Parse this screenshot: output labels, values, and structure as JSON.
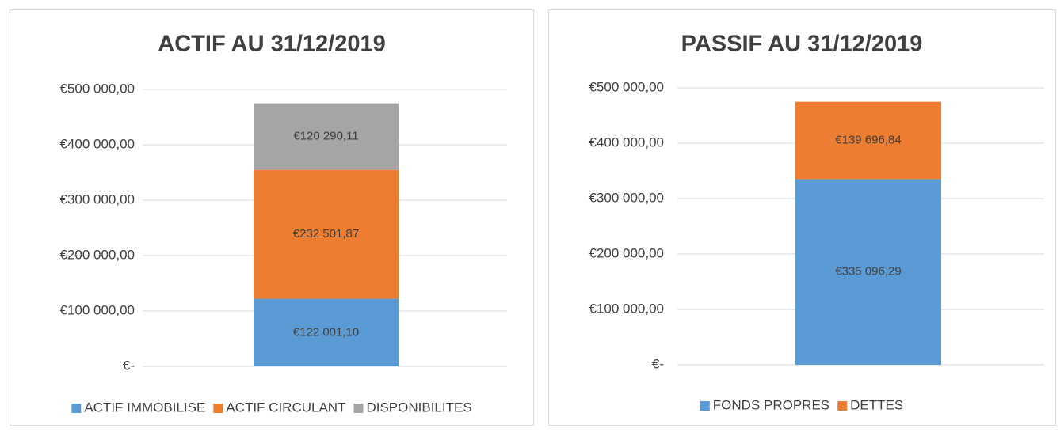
{
  "chart_data": [
    {
      "type": "stacked-bar",
      "title": "ACTIF AU 31/12/2019",
      "categories": [
        null
      ],
      "series": [
        {
          "name": "ACTIF IMMOBILISE",
          "color": "#5b9bd5",
          "values": [
            122001.1
          ],
          "value_labels": [
            "€122 001,10"
          ]
        },
        {
          "name": "ACTIF CIRCULANT",
          "color": "#ed7d31",
          "values": [
            232501.87
          ],
          "value_labels": [
            "€232 501,87"
          ]
        },
        {
          "name": "DISPONIBILITES",
          "color": "#a5a5a5",
          "values": [
            120290.11
          ],
          "value_labels": [
            "€120 290,11"
          ]
        }
      ],
      "ylim": [
        0,
        500000
      ],
      "yticks": [
        {
          "value": 0,
          "label": "€-"
        },
        {
          "value": 100000,
          "label": "€100 000,00"
        },
        {
          "value": 200000,
          "label": "€200 000,00"
        },
        {
          "value": 300000,
          "label": "€300 000,00"
        },
        {
          "value": 400000,
          "label": "€400 000,00"
        },
        {
          "value": 500000,
          "label": "€500 000,00"
        }
      ],
      "grid": true,
      "legend": "bottom"
    },
    {
      "type": "stacked-bar",
      "title": "PASSIF AU 31/12/2019",
      "categories": [
        null
      ],
      "series": [
        {
          "name": "FONDS PROPRES",
          "color": "#5b9bd5",
          "values": [
            335096.29
          ],
          "value_labels": [
            "€335 096,29"
          ]
        },
        {
          "name": "DETTES",
          "color": "#ed7d31",
          "values": [
            139696.84
          ],
          "value_labels": [
            "€139 696,84"
          ]
        }
      ],
      "ylim": [
        0,
        500000
      ],
      "yticks": [
        {
          "value": 0,
          "label": "€-"
        },
        {
          "value": 100000,
          "label": "€100 000,00"
        },
        {
          "value": 200000,
          "label": "€200 000,00"
        },
        {
          "value": 300000,
          "label": "€300 000,00"
        },
        {
          "value": 400000,
          "label": "€400 000,00"
        },
        {
          "value": 500000,
          "label": "€500 000,00"
        }
      ],
      "grid": true,
      "legend": "bottom"
    }
  ]
}
